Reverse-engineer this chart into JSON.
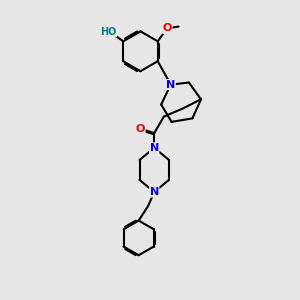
{
  "bg_color": "#e6e6e6",
  "bond_color": "#000000",
  "bond_width": 1.5,
  "atom_colors": {
    "N": "#0000ee",
    "O": "#ee0000",
    "HO": "#008080"
  },
  "font_size": 8,
  "fig_size": [
    3.0,
    3.0
  ],
  "dpi": 100
}
